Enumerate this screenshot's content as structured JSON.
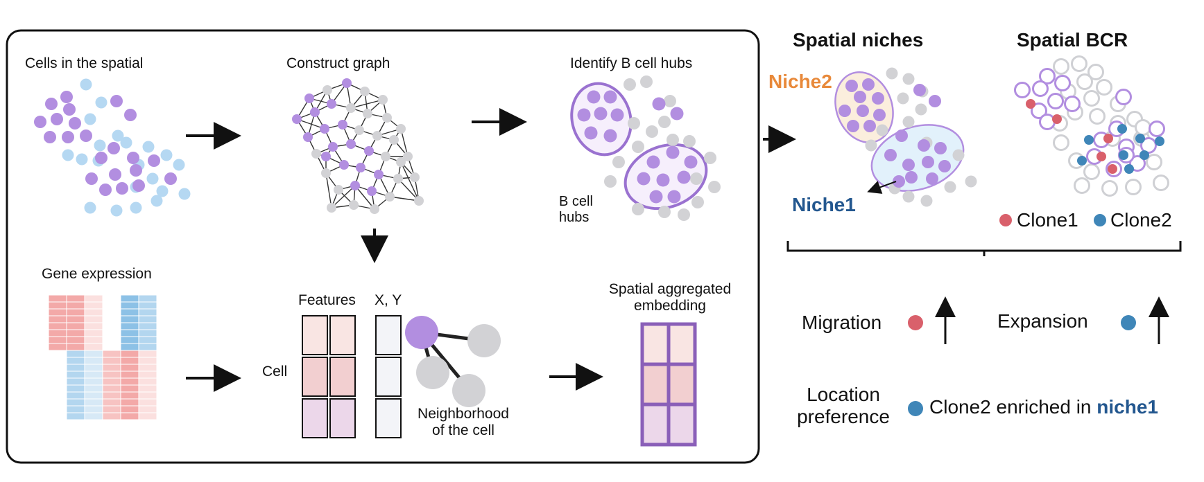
{
  "workflow": {
    "cells_in_spatial": "Cells in the spatial",
    "construct_graph": "Construct graph",
    "identify_hubs": "Identify B cell hubs",
    "b_cell_hubs": "B cell\nhubs",
    "gene_expression": "Gene expression",
    "features": "Features",
    "xy": "X, Y",
    "cell": "Cell",
    "neighborhood": "Neighborhood\nof the cell",
    "aggregated_embedding": "Spatial aggregated\nembedding"
  },
  "spatial_niches": {
    "title": "Spatial niches",
    "niche2": "Niche2",
    "niche1": "Niche1"
  },
  "spatial_bcr": {
    "title": "Spatial BCR",
    "legend": [
      {
        "label": "Clone1",
        "color": "#d9606b"
      },
      {
        "label": "Clone2",
        "color": "#3f86b8"
      }
    ]
  },
  "outcomes": {
    "migration": "Migration",
    "expansion": "Expansion",
    "location_preference": "Location\npreference",
    "clone2_enriched_prefix": "Clone2 enriched in ",
    "clone2_enriched_niche": "niche1"
  },
  "colors": {
    "purple": "#b28ee0",
    "light_blue": "#b5d8f2",
    "gray": "#d2d2d5",
    "niche2_orange": "#e8893a",
    "niche1_blue": "#23578f",
    "hub_outline": "#9a72d0"
  }
}
